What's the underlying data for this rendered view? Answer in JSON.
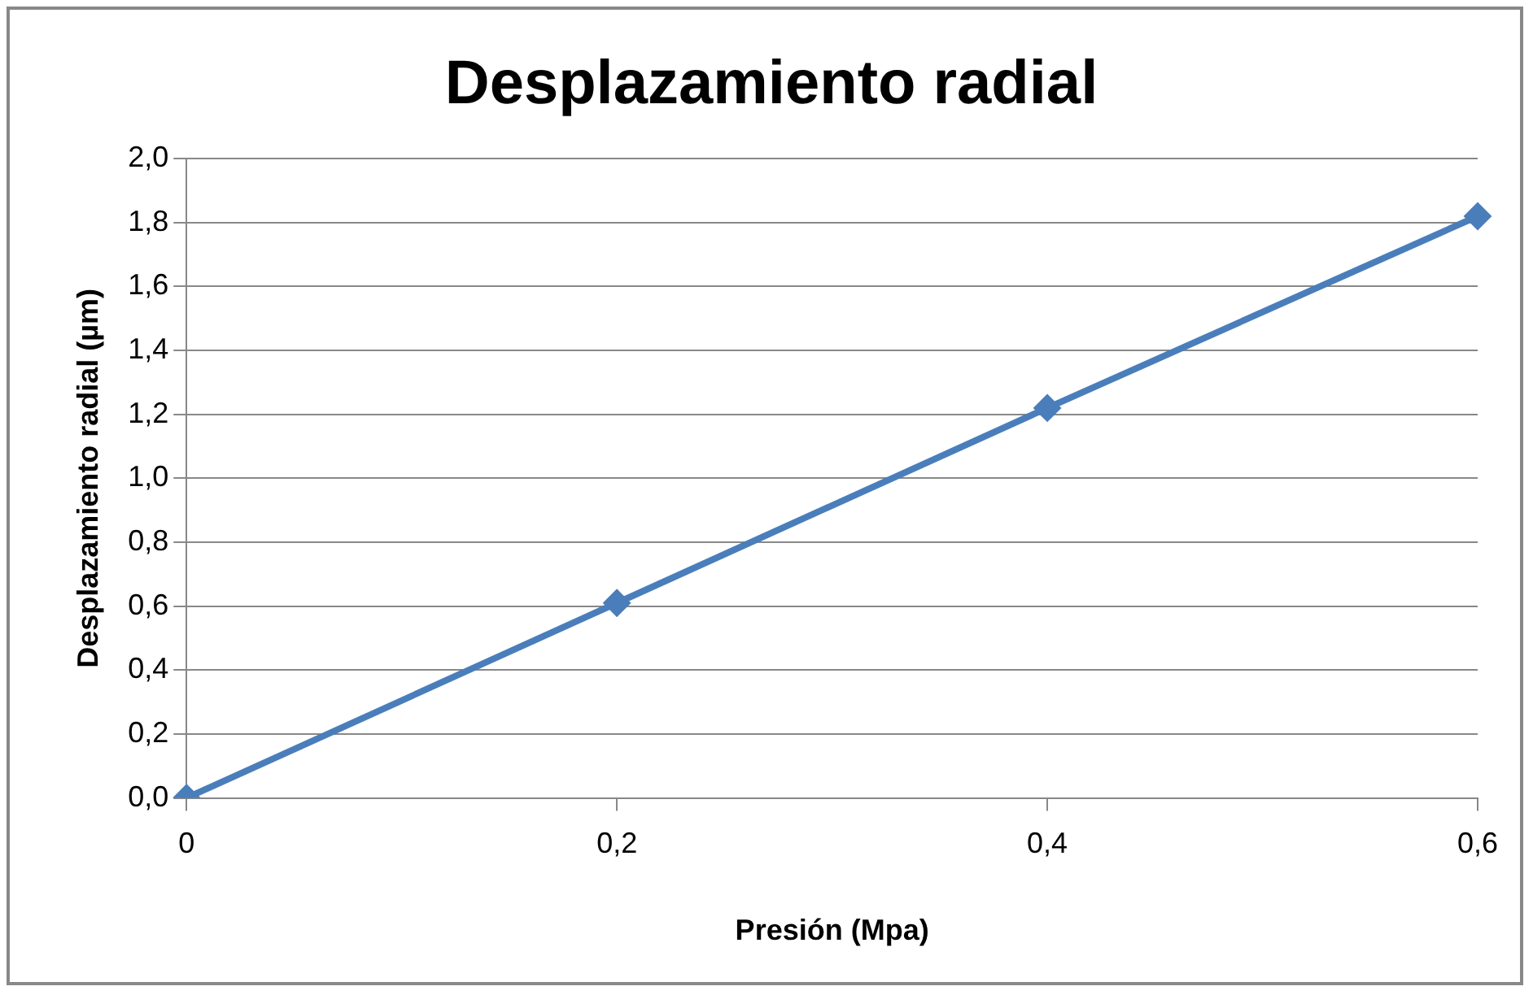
{
  "chart_data": {
    "type": "line",
    "title": "Desplazamiento radial",
    "xlabel": "Presión (Mpa)",
    "ylabel": "Desplazamiento radial (µm)",
    "categories": [
      "0",
      "0,2",
      "0,4",
      "0,6"
    ],
    "series": [
      {
        "color": "#4a7ebb",
        "values": [
          0,
          0.61,
          1.22,
          1.82
        ]
      }
    ],
    "ylim": [
      0,
      2
    ],
    "yticks": [
      {
        "value": 0,
        "label": "0,0"
      },
      {
        "value": 0.2,
        "label": "0,2"
      },
      {
        "value": 0.4,
        "label": "0,4"
      },
      {
        "value": 0.6,
        "label": "0,6"
      },
      {
        "value": 0.8,
        "label": "0,8"
      },
      {
        "value": 1,
        "label": "1,0"
      },
      {
        "value": 1.2,
        "label": "1,2"
      },
      {
        "value": 1.4,
        "label": "1,4"
      },
      {
        "value": 1.6,
        "label": "1,6"
      },
      {
        "value": 1.8,
        "label": "1,8"
      },
      {
        "value": 2,
        "label": "2,0"
      }
    ],
    "grid": "y",
    "legend": false,
    "marker": "diamond",
    "line_style": "solid"
  }
}
